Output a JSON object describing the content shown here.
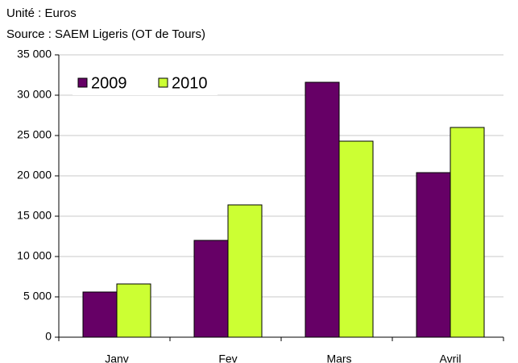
{
  "chart_data": {
    "type": "bar",
    "subtitle_lines": [
      "Unité : Euros",
      "Source : SAEM Ligeris (OT de Tours)"
    ],
    "categories": [
      "Janv",
      "Fev",
      "Mars",
      "Avril"
    ],
    "series": [
      {
        "name": "2009",
        "color": "#660066",
        "values": [
          5600,
          12000,
          31600,
          20400
        ]
      },
      {
        "name": "2010",
        "color": "#ccff33",
        "values": [
          6600,
          16400,
          24300,
          26000
        ]
      }
    ],
    "ylim": [
      0,
      35000
    ],
    "yticks": [
      0,
      {
        "value": 5000,
        "label": "5 000"
      },
      {
        "value": 10000,
        "label": "10 000"
      },
      {
        "value": 15000,
        "label": "15 000"
      },
      {
        "value": 20000,
        "label": "20 000"
      },
      {
        "value": 25000,
        "label": "25 000"
      },
      {
        "value": 30000,
        "label": "30 000"
      },
      {
        "value": 35000,
        "label": "35 000"
      }
    ],
    "grid": true,
    "legend": "top-left"
  }
}
